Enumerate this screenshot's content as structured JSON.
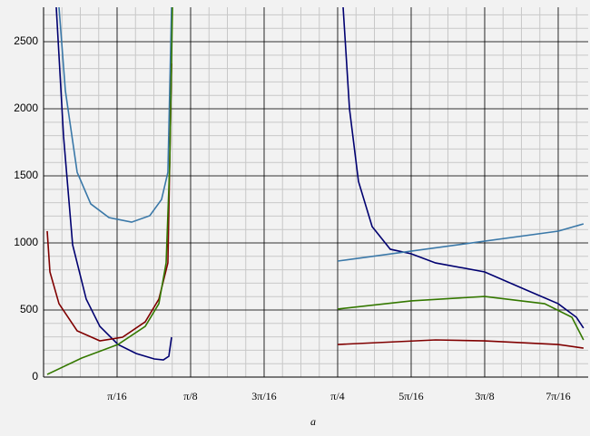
{
  "chart_data": {
    "type": "line",
    "x_label": "a",
    "xlim": [
      0,
      1.4545
    ],
    "ylim": [
      0,
      2757
    ],
    "xticks": [
      {
        "value": 0.19635,
        "label": "π/16"
      },
      {
        "value": 0.3927,
        "label": "π/8"
      },
      {
        "value": 0.58905,
        "label": "3π/16"
      },
      {
        "value": 0.7854,
        "label": "π/4"
      },
      {
        "value": 0.98175,
        "label": "5π/16"
      },
      {
        "value": 1.1781,
        "label": "3π/8"
      },
      {
        "value": 1.37445,
        "label": "7π/16"
      }
    ],
    "yticks": [
      0,
      500,
      1000,
      1500,
      2000,
      2500
    ],
    "grid": true,
    "series": [
      {
        "color": "#000070",
        "x": [
          0.0339,
          0.0533,
          0.0776,
          0.1139,
          0.1503,
          0.1988,
          0.2473,
          0.2957,
          0.32,
          0.3345,
          0.3418,
          null,
          0.8,
          0.817,
          0.841,
          0.8775,
          0.926,
          0.982,
          1.047,
          1.178,
          1.2896,
          1.3745,
          1.423,
          1.442
        ],
        "values": [
          2757,
          1797,
          986,
          581,
          378,
          243,
          176,
          135,
          128,
          155,
          297,
          null,
          2757,
          2000,
          1459,
          1122,
          953,
          919,
          851,
          784,
          649,
          547,
          446,
          365
        ]
      },
      {
        "color": "#3a78a8",
        "x": [
          0.0412,
          0.0582,
          0.0897,
          0.126,
          0.1745,
          0.2351,
          0.2836,
          0.3151,
          0.332,
          0.3418,
          null,
          0.7854,
          1.3745,
          1.442
        ],
        "values": [
          2757,
          2135,
          1527,
          1291,
          1189,
          1155,
          1203,
          1324,
          1527,
          2757,
          null,
          865,
          1088,
          1142
        ]
      },
      {
        "color": "#800000",
        "x": [
          0.0097,
          0.017,
          0.0412,
          0.0897,
          0.1503,
          0.2109,
          0.2715,
          0.3079,
          0.332,
          0.3418,
          null,
          0.7854,
          1.047,
          1.178,
          1.3745,
          1.442
        ],
        "values": [
          1088,
          784,
          547,
          345,
          270,
          297,
          412,
          581,
          851,
          2338,
          null,
          243,
          277,
          270,
          243,
          216
        ]
      },
      {
        "color": "#347800",
        "x": [
          0.0097,
          0.1018,
          0.1988,
          0.2715,
          0.3079,
          0.3273,
          0.337,
          0.3442,
          null,
          0.7854,
          0.982,
          1.178,
          1.3382,
          1.411,
          1.442
        ],
        "values": [
          20,
          142,
          243,
          378,
          547,
          851,
          1595,
          2757,
          null,
          507,
          568,
          601,
          547,
          446,
          277
        ]
      }
    ]
  }
}
